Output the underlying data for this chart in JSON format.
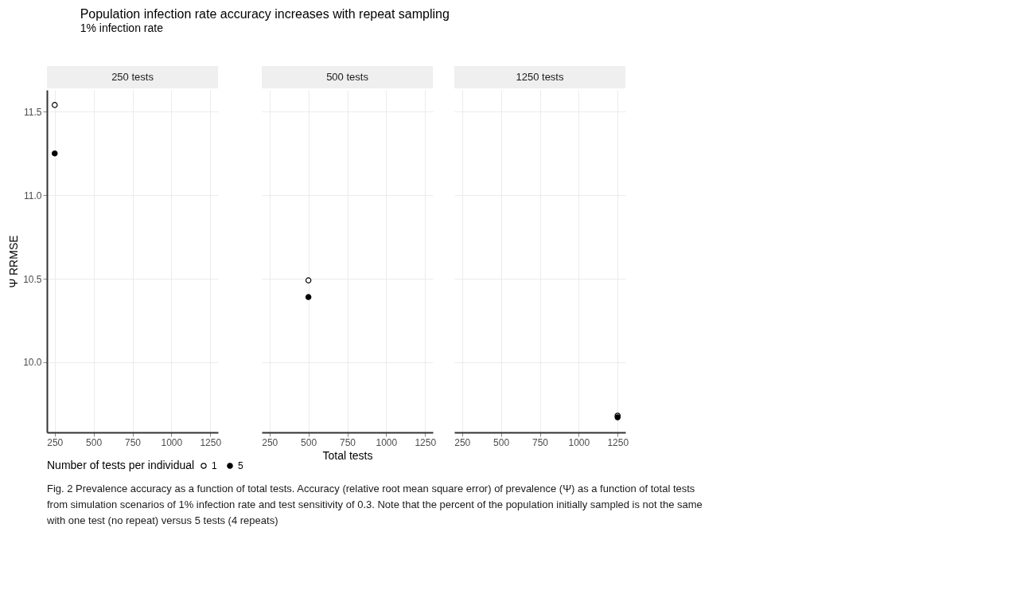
{
  "chart_data": [
    {
      "type": "scatter",
      "title": "Population infection rate accuracy increases with repeat sampling",
      "subtitle": "1% infection rate",
      "ylabel": "Ψ RRMSE",
      "legend_title": "Number of tests per individual",
      "legend": "bottom",
      "marker": "circle",
      "grid": true,
      "annotations": [
        "250 tests",
        "Fig. 2 Prevalence accuracy as a function of total tests. Accuracy (relative root mean square error) of prevalence (Ψ) as a function of total tests from simulation scenarios of 1% infection rate and test sensitivity of 0.3. Note that the percent of the population initially sampled is not the same with one test (no repeat) versus 5 tests (4 repeats)"
      ],
      "xlim": [
        200,
        1300
      ],
      "xticks": [
        250,
        500,
        750,
        1000,
        1250
      ],
      "ylim": [
        9.58,
        11.63
      ],
      "yticks": [
        {
          "value": 10,
          "label": "10.0"
        },
        10.5,
        {
          "value": 11,
          "label": "11.0"
        },
        11.5
      ],
      "series": [
        {
          "name": "1",
          "color": "#000000",
          "x": [
            250
          ],
          "values": [
            11.54
          ]
        },
        {
          "name": "5",
          "color": "#000000",
          "x": [
            250
          ],
          "values": [
            11.25
          ]
        }
      ]
    },
    {
      "type": "scatter",
      "xlabel": "Total tests",
      "marker": "circle",
      "grid": true,
      "tick_labels": "x",
      "annotations": [
        "500 tests"
      ],
      "xlim": [
        200,
        1300
      ],
      "xticks": [
        250,
        500,
        750,
        1000,
        1250
      ],
      "ylim": [
        9.58,
        11.63
      ],
      "yticks": [
        10.0,
        10.5,
        11.0,
        11.5
      ],
      "series": [
        {
          "name": "1",
          "color": "#000000",
          "x": [
            500
          ],
          "values": [
            10.49
          ]
        },
        {
          "name": "5",
          "color": "#000000",
          "x": [
            500
          ],
          "values": [
            10.39
          ]
        }
      ]
    },
    {
      "type": "scatter",
      "marker": "circle",
      "grid": true,
      "tick_labels": "x",
      "annotations": [
        "1250 tests"
      ],
      "xlim": [
        200,
        1300
      ],
      "xticks": [
        250,
        500,
        750,
        1000,
        1250
      ],
      "ylim": [
        9.58,
        11.63
      ],
      "yticks": [
        10.0,
        10.5,
        11.0,
        11.5
      ],
      "series": [
        {
          "name": "1",
          "color": "#000000",
          "x": [
            1250
          ],
          "values": [
            9.68
          ]
        },
        {
          "name": "5",
          "color": "#000000",
          "x": [
            1250
          ],
          "values": [
            9.67
          ]
        }
      ]
    }
  ]
}
